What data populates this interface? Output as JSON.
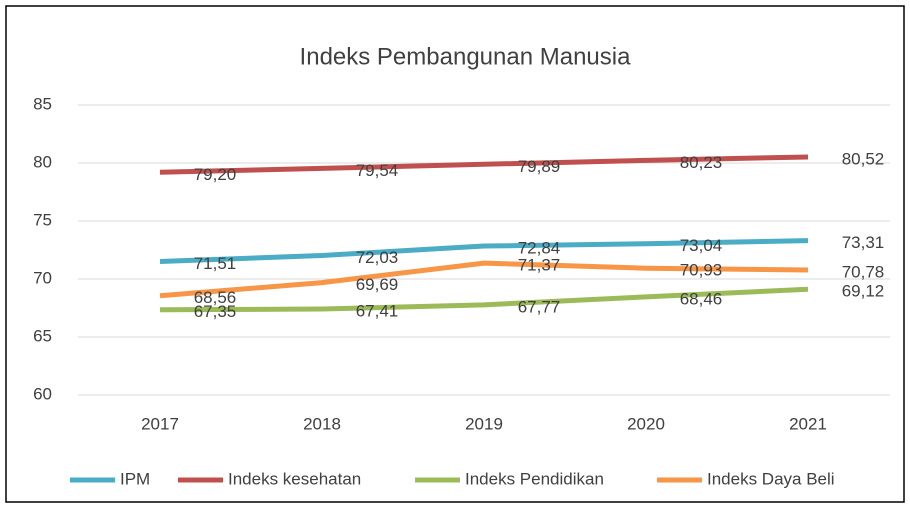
{
  "chart_data": {
    "type": "line",
    "title": "Indeks Pembangunan Manusia",
    "categories": [
      "2017",
      "2018",
      "2019",
      "2020",
      "2021"
    ],
    "series": [
      {
        "name": "IPM",
        "color": "#4bacc6",
        "values": [
          71.51,
          72.03,
          72.84,
          73.04,
          73.31
        ],
        "value_labels": [
          "71,51",
          "72,03",
          "72,84",
          "73,04",
          "73,31"
        ]
      },
      {
        "name": "Indeks kesehatan",
        "color": "#c0504d",
        "values": [
          79.2,
          79.54,
          79.89,
          80.23,
          80.52
        ],
        "value_labels": [
          "79,20",
          "79,54",
          "79,89",
          "80,23",
          "80,52"
        ]
      },
      {
        "name": "Indeks Pendidikan",
        "color": "#9bbb59",
        "values": [
          67.35,
          67.41,
          67.77,
          68.46,
          69.12
        ],
        "value_labels": [
          "67,35",
          "67,41",
          "67,77",
          "68,46",
          "69,12"
        ]
      },
      {
        "name": "Indeks Daya Beli",
        "color": "#f79646",
        "values": [
          68.56,
          69.69,
          71.37,
          70.93,
          70.78
        ],
        "value_labels": [
          "68,56",
          "69,69",
          "71,37",
          "70,93",
          "70,78"
        ]
      }
    ],
    "ylim": [
      60,
      85
    ],
    "yticks": [
      60,
      65,
      70,
      75,
      80,
      85
    ],
    "grid": true,
    "legend": "bottom"
  }
}
